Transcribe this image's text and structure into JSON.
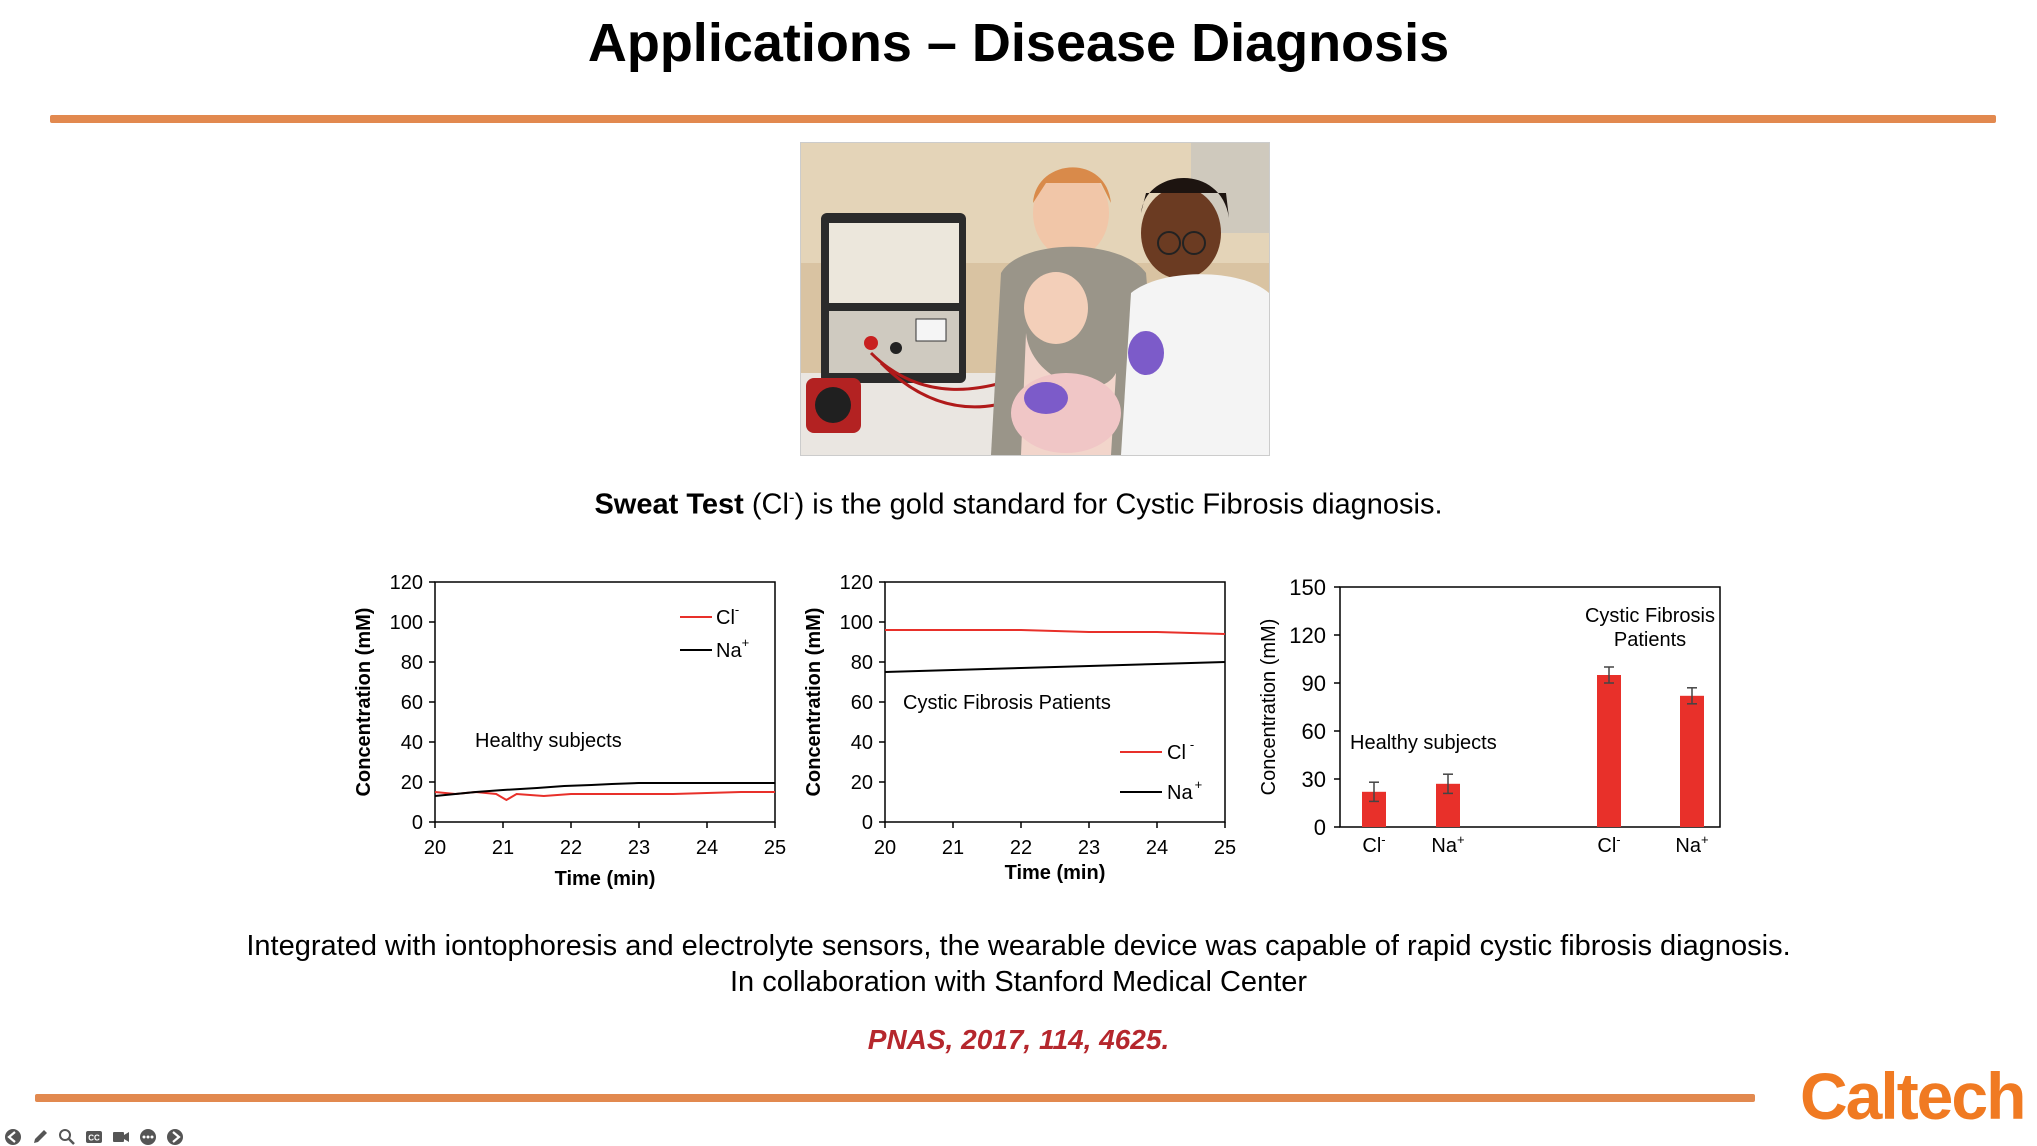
{
  "slide": {
    "title": "Applications – Disease Diagnosis",
    "subtitle_bold": "Sweat Test",
    "subtitle_cl": "(Cl",
    "subtitle_sup": "-",
    "subtitle_rest": ") is the gold standard for Cystic Fibrosis diagnosis.",
    "caption_line1": "Integrated with iontophoresis and electrolyte sensors, the wearable device was capable of rapid cystic fibrosis diagnosis.",
    "caption_line2": "In collaboration with Stanford Medical Center",
    "citation": "PNAS, 2017, 114, 4625.",
    "logo": "Caltech"
  },
  "colors": {
    "accent_rule": "#e2894f",
    "series_cl": "#e8302a",
    "series_na": "#000000",
    "citation": "#b5272d",
    "logo": "#f07a22"
  },
  "toolbar": {
    "icons": [
      "back-arrow-icon",
      "pen-icon",
      "zoom-icon",
      "closed-caption-icon",
      "camera-icon",
      "more-options-icon",
      "forward-arrow-icon"
    ]
  },
  "chart_data": [
    {
      "type": "line",
      "annotation": "Healthy subjects",
      "xlabel": "Time (min)",
      "ylabel": "Concentration (mM)",
      "xlim": [
        20,
        25
      ],
      "ylim": [
        0,
        120
      ],
      "xticks": [
        "20",
        "21",
        "22",
        "23",
        "24",
        "25"
      ],
      "yticks": [
        "0",
        "20",
        "40",
        "60",
        "80",
        "100",
        "120"
      ],
      "legend_placement": "top-right",
      "series": [
        {
          "name": "Cl",
          "sup": "-",
          "color": "#e8302a",
          "points": [
            [
              20,
              15
            ],
            [
              20.3,
              14
            ],
            [
              20.6,
              15
            ],
            [
              20.9,
              14
            ],
            [
              21.05,
              11
            ],
            [
              21.2,
              14
            ],
            [
              21.6,
              13
            ],
            [
              22,
              14
            ],
            [
              22.5,
              14
            ],
            [
              23,
              14
            ],
            [
              23.5,
              14
            ],
            [
              24,
              14.5
            ],
            [
              24.5,
              15
            ],
            [
              25,
              15
            ]
          ]
        },
        {
          "name": "Na",
          "sup": "+",
          "color": "#000000",
          "points": [
            [
              20,
              13
            ],
            [
              20.3,
              14
            ],
            [
              20.6,
              15
            ],
            [
              21,
              16
            ],
            [
              21.5,
              17
            ],
            [
              21.9,
              18
            ],
            [
              22.3,
              18.5
            ],
            [
              22.6,
              19
            ],
            [
              23,
              19.5
            ],
            [
              23.5,
              19.5
            ],
            [
              24,
              19.5
            ],
            [
              24.5,
              19.5
            ],
            [
              25,
              19.5
            ]
          ]
        }
      ]
    },
    {
      "type": "line",
      "annotation": "Cystic Fibrosis Patients",
      "xlabel": "Time (min)",
      "ylabel": "Concentration (mM)",
      "xlim": [
        20,
        25
      ],
      "ylim": [
        0,
        120
      ],
      "xticks": [
        "20",
        "21",
        "22",
        "23",
        "24",
        "25"
      ],
      "yticks": [
        "0",
        "20",
        "40",
        "60",
        "80",
        "100",
        "120"
      ],
      "legend_placement": "bottom-right",
      "series": [
        {
          "name": "Cl",
          "sup": "-",
          "color": "#e8302a",
          "points": [
            [
              20,
              96
            ],
            [
              21,
              96
            ],
            [
              22,
              96
            ],
            [
              22.5,
              95.5
            ],
            [
              23,
              95
            ],
            [
              24,
              95
            ],
            [
              25,
              94
            ]
          ]
        },
        {
          "name": "Na",
          "sup": "+",
          "color": "#000000",
          "points": [
            [
              20,
              75
            ],
            [
              21,
              76
            ],
            [
              22,
              77
            ],
            [
              23,
              78
            ],
            [
              24,
              79
            ],
            [
              25,
              80
            ]
          ]
        }
      ]
    },
    {
      "type": "bar",
      "ylabel": "Concentration (mM)",
      "ylim": [
        0,
        150
      ],
      "yticks": [
        "0",
        "30",
        "60",
        "90",
        "120",
        "150"
      ],
      "groups": [
        {
          "label": "Healthy subjects",
          "bars": [
            {
              "category": "Cl",
              "sup": "-",
              "value": 22,
              "error": 6
            },
            {
              "category": "Na",
              "sup": "+",
              "value": 27,
              "error": 6
            }
          ]
        },
        {
          "label": "Cystic Fibrosis Patients",
          "bars": [
            {
              "category": "Cl",
              "sup": "-",
              "value": 95,
              "error": 5
            },
            {
              "category": "Na",
              "sup": "+",
              "value": 82,
              "error": 5
            }
          ]
        }
      ],
      "color": "#e8302a"
    }
  ]
}
